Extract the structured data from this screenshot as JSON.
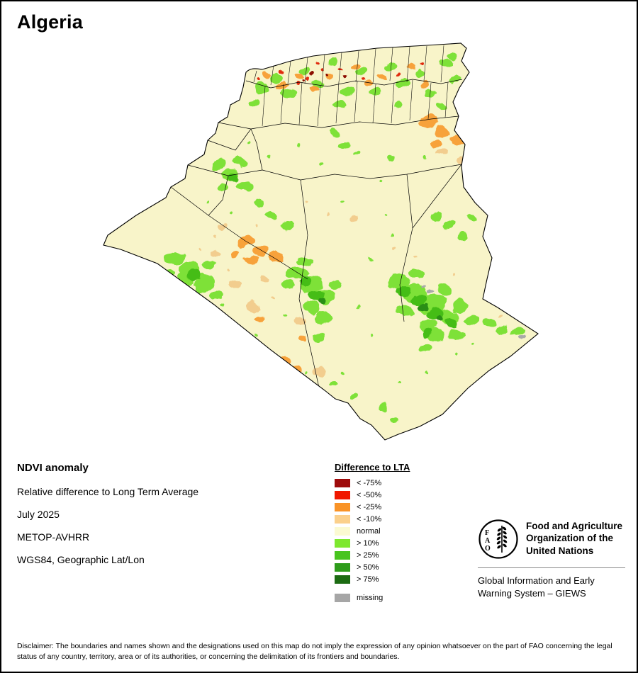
{
  "page": {
    "title": "Algeria"
  },
  "map": {
    "region_name": "Algeria",
    "type": "NDVI anomaly raster map",
    "base_color": "#f8f4c9",
    "boundary_color": "#000000"
  },
  "info": {
    "heading": "NDVI anomaly",
    "subtitle": "Relative difference to Long Term Average",
    "period": "July 2025",
    "sensor": "METOP-AVHRR",
    "projection": "WGS84, Geographic Lat/Lon"
  },
  "legend": {
    "title": "Difference to LTA",
    "items": [
      {
        "label": "< -75%",
        "color": "#9e0b0b"
      },
      {
        "label": "< -50%",
        "color": "#f01800"
      },
      {
        "label": "< -25%",
        "color": "#f99327"
      },
      {
        "label": "< -10%",
        "color": "#fbd08c"
      },
      {
        "label": "normal",
        "color": "#fbfad2"
      },
      {
        "label": "> 10%",
        "color": "#7ee82e"
      },
      {
        "label": "> 25%",
        "color": "#48c41e"
      },
      {
        "label": "> 50%",
        "color": "#2e9c1b"
      },
      {
        "label": "> 75%",
        "color": "#1c6b12"
      },
      {
        "label": "missing",
        "color": "#a6a6a6",
        "gap_before": true
      }
    ]
  },
  "footer": {
    "logo_letters": "FAO",
    "org_name": "Food and Agriculture Organization of the United Nations",
    "giews": "Global Information and Early Warning System – GIEWS"
  },
  "disclaimer": "Disclaimer: The boundaries and names shown and the designations used on this map do not imply the expression of any opinion whatsoever on the part of FAO concerning the legal status of any country, territory, area or of its authorities, or concerning the delimitation of its frontiers and boundaries."
}
